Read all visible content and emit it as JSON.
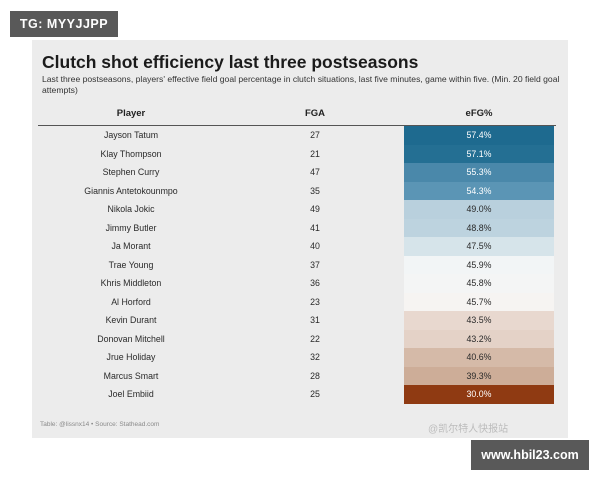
{
  "badges": {
    "top_left": "TG: MYYJJPP",
    "bottom_right": "www.hbil23.com"
  },
  "watermark": "@凯尔特人快报站",
  "chart_data": {
    "type": "table",
    "title": "Clutch shot efficiency last three postseasons",
    "subtitle": "Last three postseasons, players' effective field goal percentage in clutch situations, last five minutes, game within five. (Min. 20 field goal attempts)",
    "columns": [
      "Player",
      "FGA",
      "eFG%"
    ],
    "rows": [
      {
        "player": "Jayson Tatum",
        "fga": "27",
        "efg": "57.4%",
        "bg": "#1e6a8f",
        "fg": "#ffffff"
      },
      {
        "player": "Klay Thompson",
        "fga": "21",
        "efg": "57.1%",
        "bg": "#246f93",
        "fg": "#ffffff"
      },
      {
        "player": "Stephen Curry",
        "fga": "47",
        "efg": "55.3%",
        "bg": "#4a88aa",
        "fg": "#ffffff"
      },
      {
        "player": "Giannis Antetokounmpo",
        "fga": "35",
        "efg": "54.3%",
        "bg": "#5b95b5",
        "fg": "#ffffff"
      },
      {
        "player": "Nikola Jokic",
        "fga": "49",
        "efg": "49.0%",
        "bg": "#b9d0dd",
        "fg": "#2a2a2a"
      },
      {
        "player": "Jimmy Butler",
        "fga": "41",
        "efg": "48.8%",
        "bg": "#bdd3df",
        "fg": "#2a2a2a"
      },
      {
        "player": "Ja Morant",
        "fga": "40",
        "efg": "47.5%",
        "bg": "#d6e4ea",
        "fg": "#2a2a2a"
      },
      {
        "player": "Trae Young",
        "fga": "37",
        "efg": "45.9%",
        "bg": "#f2f5f6",
        "fg": "#2a2a2a"
      },
      {
        "player": "Khris Middleton",
        "fga": "36",
        "efg": "45.8%",
        "bg": "#f4f5f5",
        "fg": "#2a2a2a"
      },
      {
        "player": "Al Horford",
        "fga": "23",
        "efg": "45.7%",
        "bg": "#f6f4f2",
        "fg": "#2a2a2a"
      },
      {
        "player": "Kevin Durant",
        "fga": "31",
        "efg": "43.5%",
        "bg": "#e8d8cf",
        "fg": "#2a2a2a"
      },
      {
        "player": "Donovan Mitchell",
        "fga": "22",
        "efg": "43.2%",
        "bg": "#e4d2c7",
        "fg": "#2a2a2a"
      },
      {
        "player": "Jrue Holiday",
        "fga": "32",
        "efg": "40.6%",
        "bg": "#d5baa8",
        "fg": "#2a2a2a"
      },
      {
        "player": "Marcus Smart",
        "fga": "28",
        "efg": "39.3%",
        "bg": "#cdad98",
        "fg": "#2a2a2a"
      },
      {
        "player": "Joel Embiid",
        "fga": "25",
        "efg": "30.0%",
        "bg": "#8f3a12",
        "fg": "#ffffff"
      }
    ],
    "footnote": "Table: @lissnx14 • Source: Stathead.com"
  }
}
